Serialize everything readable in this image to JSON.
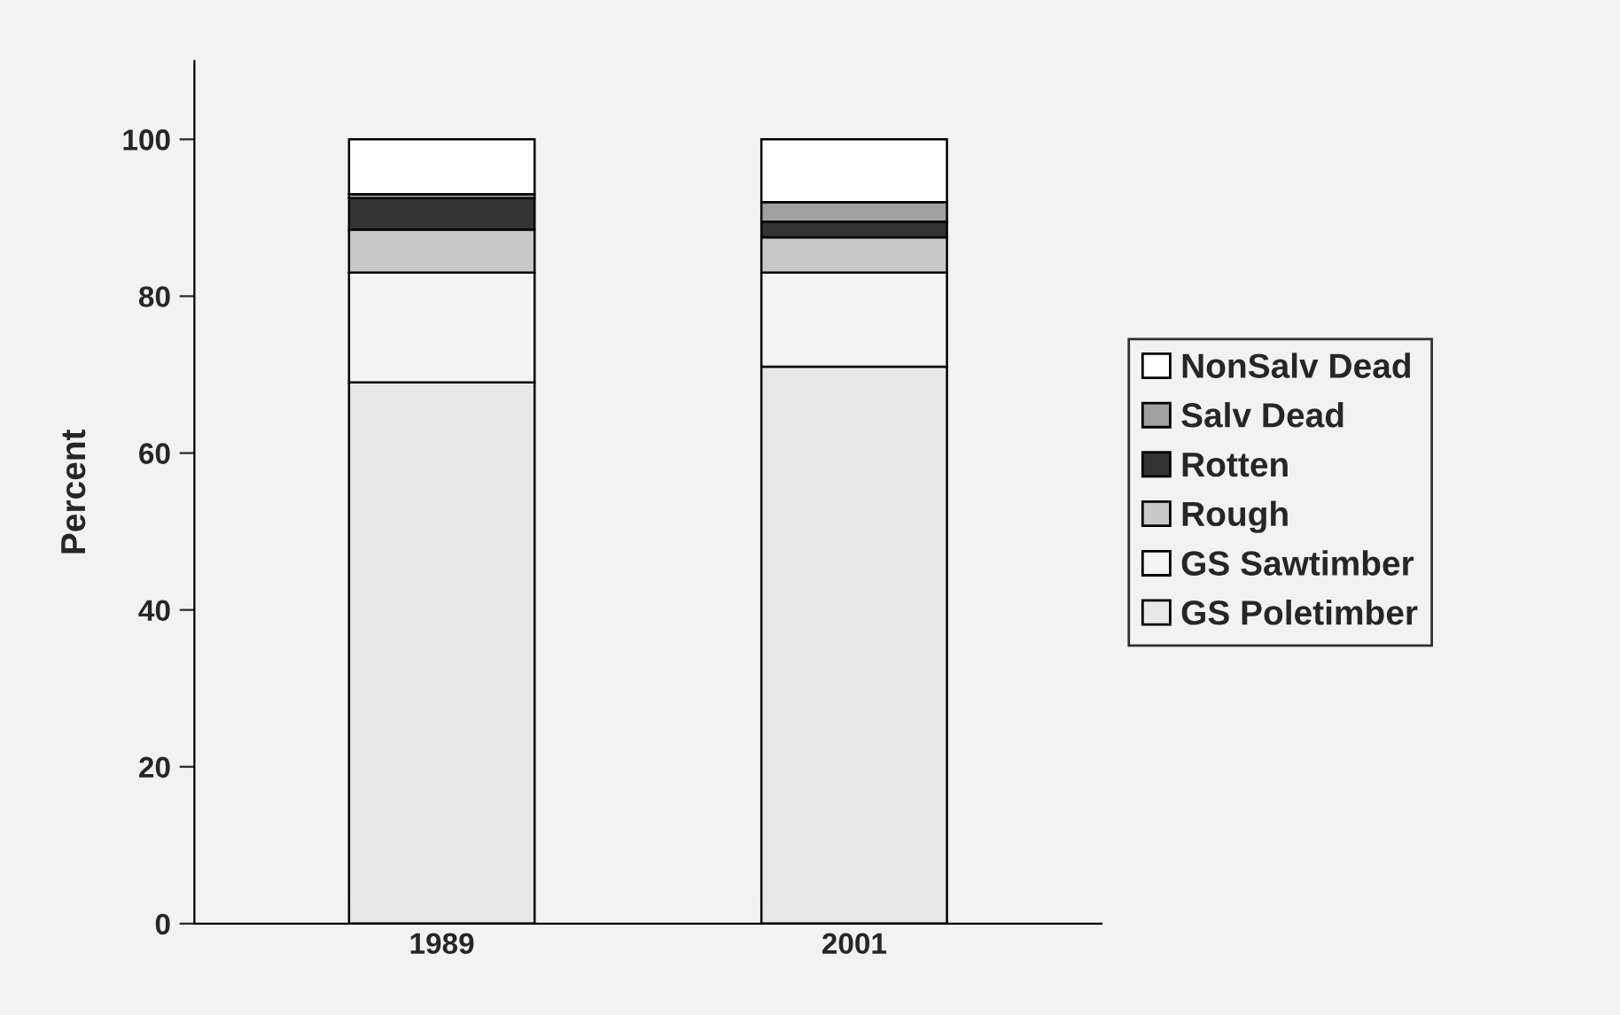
{
  "chart_data": {
    "type": "bar",
    "stacked": true,
    "ylabel": "Percent",
    "categories": [
      "1989",
      "2001"
    ],
    "series": [
      {
        "name": "GS Poletimber",
        "color": "#e8e8e8",
        "values": [
          69,
          71
        ]
      },
      {
        "name": "GS Sawtimber",
        "color": "#f4f4f4",
        "values": [
          14,
          12
        ]
      },
      {
        "name": "Rough",
        "color": "#c8c8c8",
        "values": [
          5.5,
          4.5
        ]
      },
      {
        "name": "Rotten",
        "color": "#333333",
        "values": [
          4,
          2
        ]
      },
      {
        "name": "Salv Dead",
        "color": "#a0a0a0",
        "values": [
          0.5,
          2.5
        ]
      },
      {
        "name": "NonSalv Dead",
        "color": "#ffffff",
        "values": [
          7,
          8
        ]
      }
    ],
    "ylim": [
      0,
      110
    ],
    "yticks": [
      0,
      20,
      40,
      60,
      80,
      100
    ],
    "grid": false,
    "legend": "right"
  }
}
